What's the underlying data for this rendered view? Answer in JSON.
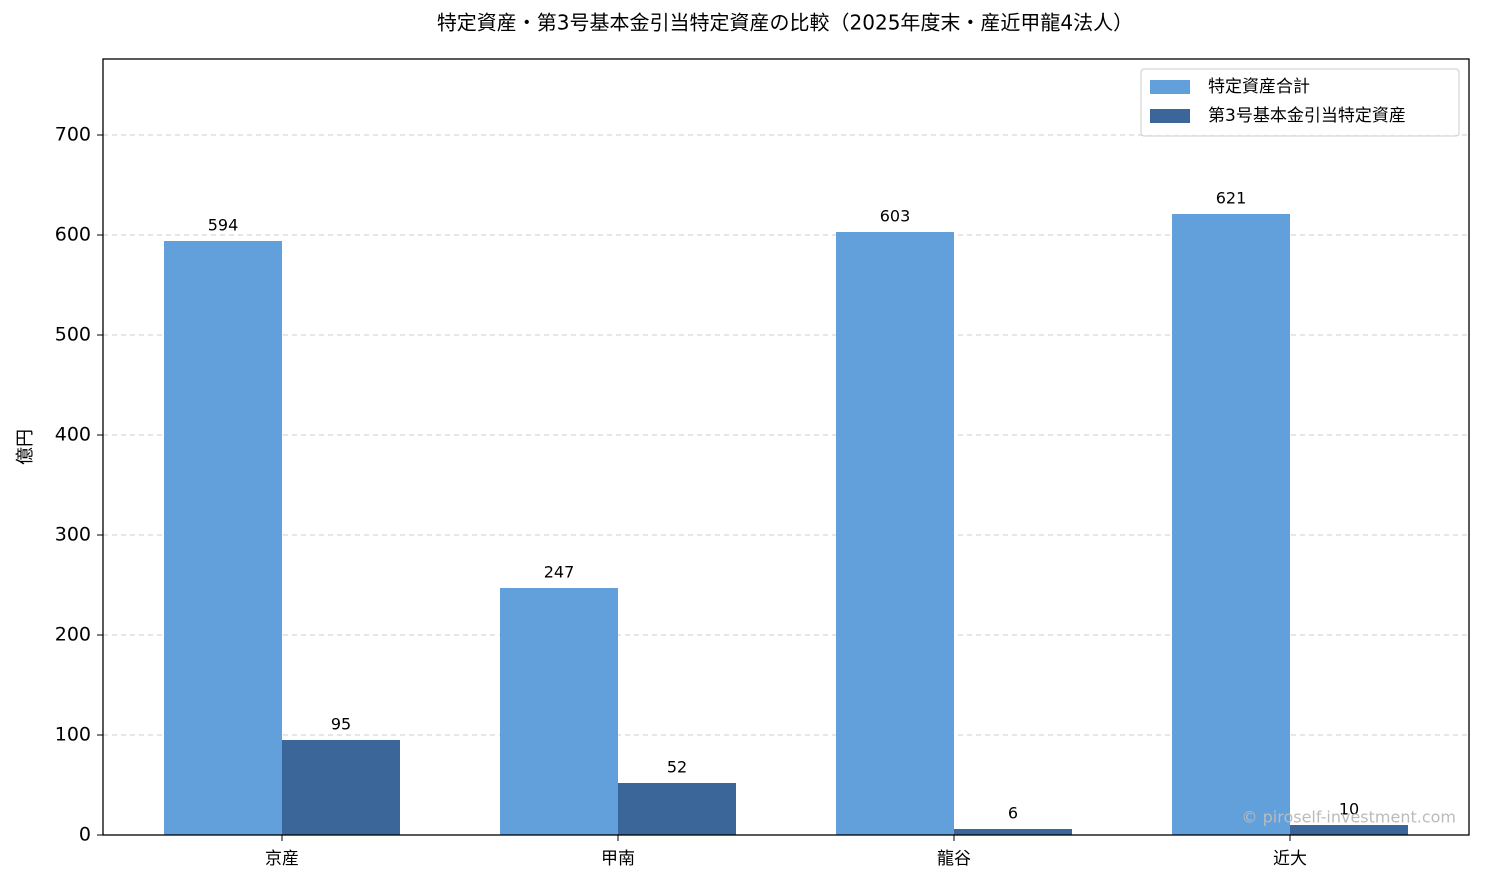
{
  "chart_data": {
    "type": "bar",
    "title": "特定資産・第3号基本金引当特定資産の比較（2025年度末・産近甲龍4法人）",
    "y_label": "億円",
    "categories": [
      "京産",
      "甲南",
      "龍谷",
      "近大"
    ],
    "series": [
      {
        "name": "特定資産合計",
        "color": "#62a0dc",
        "values": [
          594,
          247,
          603,
          621
        ]
      },
      {
        "name": "第3号基本金引当特定資産",
        "color": "#3b6699",
        "values": [
          95,
          52,
          6,
          10
        ]
      }
    ],
    "ylim": [
      0,
      776
    ],
    "yticks": [
      0,
      100,
      200,
      300,
      400,
      500,
      600,
      700
    ],
    "grid": true,
    "legend": "upper right",
    "watermark": "© piroself-investment.com"
  }
}
